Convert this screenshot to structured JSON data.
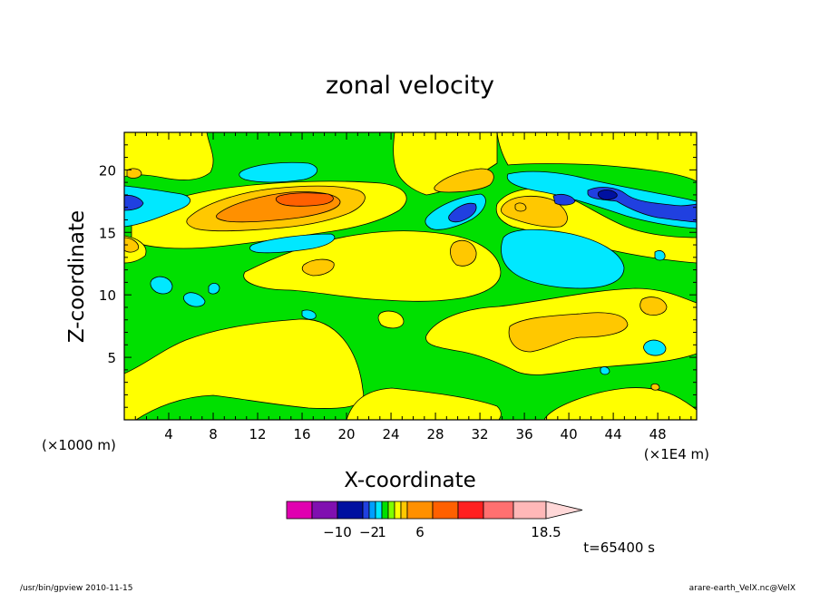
{
  "chart_data": {
    "type": "heatmap",
    "title": "zonal velocity",
    "xlabel": "X-coordinate",
    "ylabel": "Z-coordinate",
    "x_unit_left": "(×1000 m)",
    "x_unit_right": "(×1E4 m)",
    "xlim": [
      0,
      51.5
    ],
    "ylim": [
      0,
      23
    ],
    "x_ticks": [
      "4",
      "8",
      "12",
      "16",
      "20",
      "24",
      "28",
      "32",
      "36",
      "40",
      "44",
      "48"
    ],
    "y_ticks": [
      "5",
      "10",
      "15",
      "20"
    ],
    "time_label": "t=65400 s",
    "colorbar": {
      "ticks": [
        {
          "value": -10,
          "label": "−10"
        },
        {
          "value": -2,
          "label": "−2"
        },
        {
          "value": 1,
          "label": "1"
        },
        {
          "value": 6,
          "label": "6"
        },
        {
          "value": 18.5,
          "label": "18.5"
        }
      ],
      "colors": [
        "#e000b0",
        "#8010b0",
        "#0010a0",
        "#2040e0",
        "#00a0ff",
        "#00e8ff",
        "#00e000",
        "#80ff00",
        "#ffff00",
        "#ffc800",
        "#ff9000",
        "#ff6000",
        "#ff2020",
        "#ff7070",
        "#ffb8b8",
        "#ffd8d8"
      ]
    },
    "legend": "colorbar-bottom",
    "grid": false,
    "levels": [
      "#00e000",
      "#ffff00",
      "#ffc800",
      "#ff9000",
      "#00e8ff",
      "#2040e0",
      "#0010a0"
    ]
  },
  "footer": {
    "left": "/usr/bin/gpview   2010-11-15",
    "right": "arare-earth_VelX.nc@VelX"
  }
}
